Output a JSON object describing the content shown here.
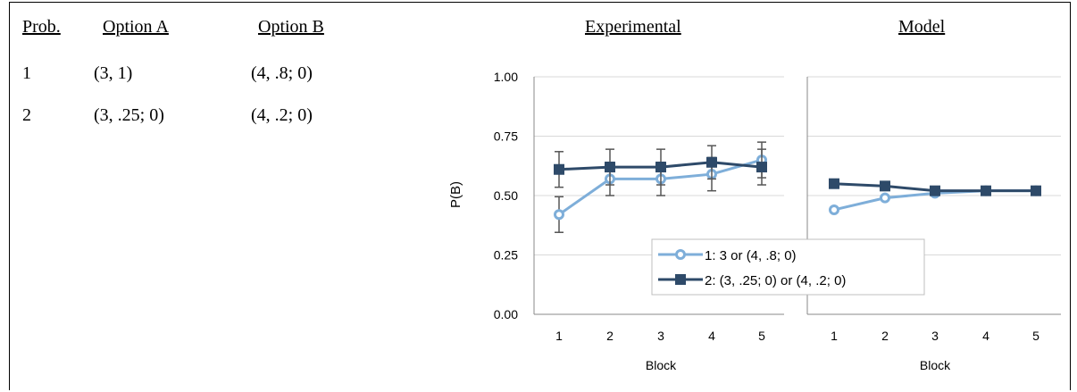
{
  "table": {
    "headers": [
      "Prob.",
      "Option A",
      "Option B"
    ],
    "rows": [
      [
        "1",
        "(3, 1)",
        "(4, .8; 0)"
      ],
      [
        "2",
        "(3, .25; 0)",
        "(4, .2; 0)"
      ]
    ]
  },
  "colors": {
    "series1": "#7EAED9",
    "series2": "#2E4A69",
    "grid": "#D9D9D9",
    "axis": "#888888",
    "error_bar": "#555555"
  },
  "chart_data": [
    {
      "type": "line",
      "title": "Experimental",
      "xlabel": "Block",
      "ylabel": "P(B)",
      "categories": [
        "1",
        "2",
        "3",
        "4",
        "5"
      ],
      "ylim": [
        0,
        1
      ],
      "yticks": [
        "0.00",
        "0.25",
        "0.50",
        "0.75",
        "1.00"
      ],
      "grid": true,
      "series": [
        {
          "name": "1: 3 or (4, .8; 0)",
          "marker": "circle",
          "values": [
            0.42,
            0.57,
            0.57,
            0.59,
            0.65
          ],
          "error": [
            0.075,
            0.07,
            0.07,
            0.07,
            0.075
          ]
        },
        {
          "name": "2: (3, .25; 0) or (4, .2; 0)",
          "marker": "square",
          "values": [
            0.61,
            0.62,
            0.62,
            0.64,
            0.62
          ],
          "error": [
            0.075,
            0.075,
            0.075,
            0.07,
            0.075
          ]
        }
      ]
    },
    {
      "type": "line",
      "title": "Model",
      "xlabel": "Block",
      "ylabel": "",
      "categories": [
        "1",
        "2",
        "3",
        "4",
        "5"
      ],
      "ylim": [
        0,
        1
      ],
      "grid": true,
      "series": [
        {
          "name": "1: 3 or (4, .8; 0)",
          "marker": "circle",
          "values": [
            0.44,
            0.49,
            0.51,
            0.52,
            0.52
          ]
        },
        {
          "name": "2: (3, .25; 0) or (4, .2; 0)",
          "marker": "square",
          "values": [
            0.55,
            0.54,
            0.52,
            0.52,
            0.52
          ]
        }
      ]
    }
  ]
}
